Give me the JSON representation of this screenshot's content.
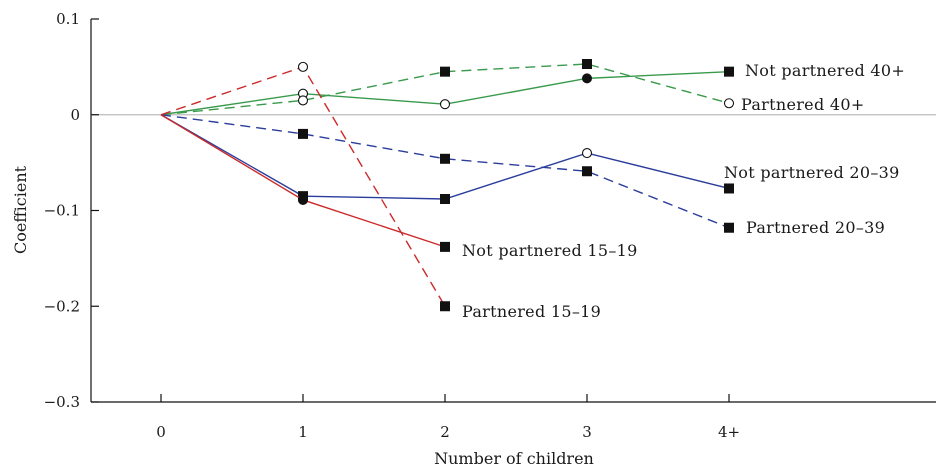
{
  "chart_data": {
    "type": "line",
    "title": "",
    "xlabel": "Number of children",
    "ylabel": "Coefficient",
    "categories": [
      "0",
      "1",
      "2",
      "3",
      "4+"
    ],
    "ylim": [
      -0.3,
      0.1
    ],
    "yticks": [
      0.1,
      0,
      -0.1,
      -0.2,
      -0.3
    ],
    "ytick_labels": [
      "0.1",
      "0",
      "−0.1",
      "−0.2",
      "−0.3"
    ],
    "zero_line": true,
    "series": [
      {
        "name": "Not partnered 40+",
        "color": "#3a9a4c",
        "dash": "solid",
        "values": [
          0,
          0.022,
          0.011,
          0.038,
          0.045
        ],
        "markers": [
          "none",
          "open-circle",
          "open-circle",
          "filled-circle",
          "filled-square"
        ]
      },
      {
        "name": "Partnered 40+",
        "color": "#3a9a4c",
        "dash": "dashed",
        "values": [
          0,
          0.015,
          0.045,
          0.053,
          0.012
        ],
        "markers": [
          "none",
          "open-circle",
          "filled-square",
          "filled-square",
          "open-circle"
        ]
      },
      {
        "name": "Not partnered 20–39",
        "color": "#2b3d9c",
        "dash": "solid",
        "values": [
          0,
          -0.085,
          -0.088,
          -0.04,
          -0.077
        ],
        "markers": [
          "none",
          "filled-square",
          "filled-square",
          "open-circle",
          "filled-square"
        ]
      },
      {
        "name": "Partnered 20–39",
        "color": "#2b3d9c",
        "dash": "dashed",
        "values": [
          0,
          -0.02,
          -0.046,
          -0.059,
          -0.118
        ],
        "markers": [
          "none",
          "filled-square",
          "filled-square",
          "filled-square",
          "filled-square"
        ]
      },
      {
        "name": "Not partnered 15–19",
        "color": "#cc2a2a",
        "dash": "solid",
        "values": [
          0,
          -0.089,
          null,
          null,
          null
        ],
        "end": {
          "category": "2",
          "value": -0.138
        },
        "markers": [
          "none",
          "filled-circle",
          "filled-square"
        ]
      },
      {
        "name": "Partnered 15–19",
        "color": "#cc2a2a",
        "dash": "dashed",
        "values": [
          0,
          0.05,
          null,
          null,
          null
        ],
        "end": {
          "category": "2",
          "value": -0.2
        },
        "markers": [
          "none",
          "open-circle",
          "filled-square"
        ]
      }
    ]
  }
}
